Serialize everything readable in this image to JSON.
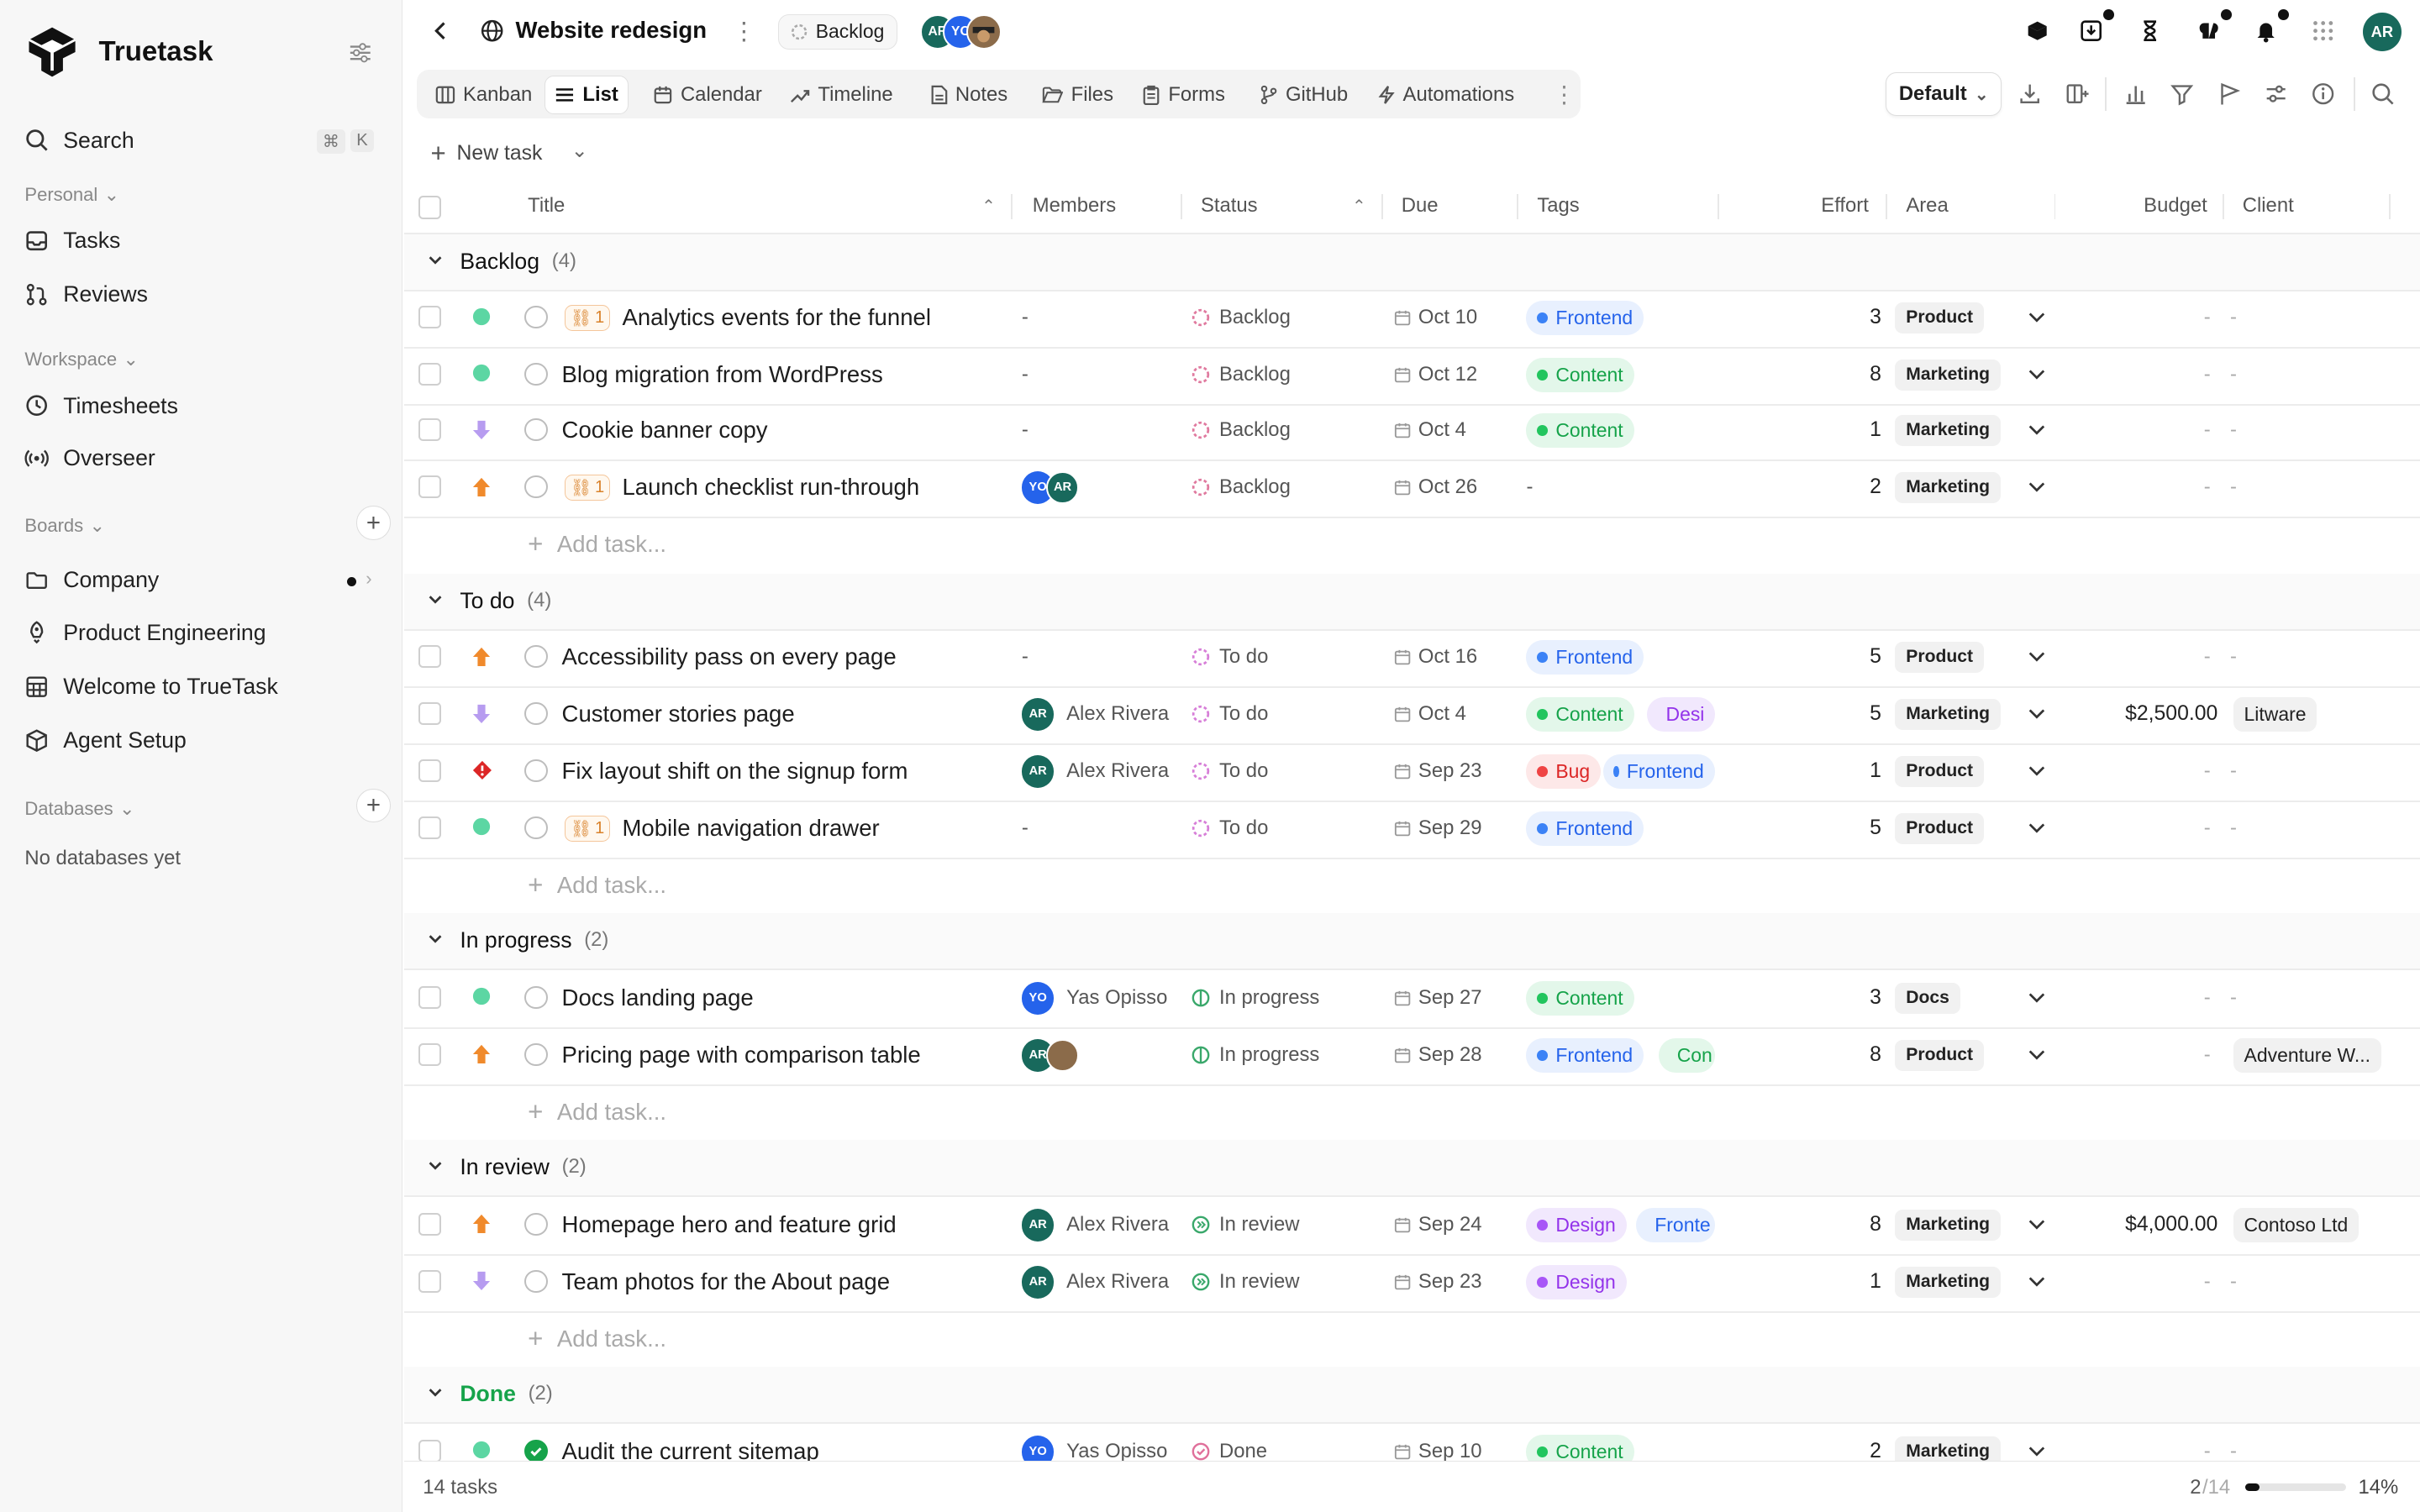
{
  "sidebar": {
    "brand": "Truetask",
    "search": "Search",
    "search_kbd_cmd": "⌘",
    "search_kbd_key": "K",
    "personal_label": "Personal",
    "tasks": "Tasks",
    "reviews": "Reviews",
    "workspace_label": "Workspace",
    "timesheets": "Timesheets",
    "overseer": "Overseer",
    "boards_label": "Boards",
    "boards": [
      "Company",
      "Product Engineering",
      "Welcome to TrueTask",
      "Agent Setup"
    ],
    "databases_label": "Databases",
    "no_databases": "No databases yet"
  },
  "header": {
    "title": "Website redesign",
    "status": "Backlog",
    "avatars": [
      "AR",
      "YO"
    ],
    "user": "AR"
  },
  "tabs": [
    "Kanban",
    "List",
    "Calendar",
    "Timeline",
    "Notes",
    "Files",
    "Forms",
    "GitHub",
    "Automations"
  ],
  "active_tab": "List",
  "view": "Default",
  "new_task": "New task",
  "columns": {
    "title": "Title",
    "members": "Members",
    "status": "Status",
    "due": "Due",
    "tags": "Tags",
    "effort": "Effort",
    "area": "Area",
    "budget": "Budget",
    "client": "Client"
  },
  "add_task": "Add task...",
  "groups": [
    {
      "name": "Backlog",
      "count": "(4)",
      "color": "#111"
    },
    {
      "name": "To do",
      "count": "(4)",
      "color": "#111"
    },
    {
      "name": "In progress",
      "count": "(2)",
      "color": "#111"
    },
    {
      "name": "In review",
      "count": "(2)",
      "color": "#111"
    },
    {
      "name": "Done",
      "count": "(2)",
      "color": "#16a34a"
    }
  ],
  "tasks": [
    {
      "priority": "green",
      "link": "1",
      "title": "Analytics events for the funnel",
      "members": "-",
      "status": "Backlog",
      "due": "Oct 10",
      "tags": [
        [
          "Frontend",
          "blue"
        ]
      ],
      "effort": "3",
      "area": "Product",
      "budget": "-",
      "client": "-"
    },
    {
      "priority": "green",
      "link": "",
      "title": "Blog migration from WordPress",
      "members": "-",
      "status": "Backlog",
      "due": "Oct 12",
      "tags": [
        [
          "Content",
          "green"
        ]
      ],
      "effort": "8",
      "area": "Marketing",
      "budget": "-",
      "client": "-"
    },
    {
      "priority": "low",
      "link": "",
      "title": "Cookie banner copy",
      "members": "-",
      "status": "Backlog",
      "due": "Oct 4",
      "tags": [
        [
          "Content",
          "green"
        ]
      ],
      "effort": "1",
      "area": "Marketing",
      "budget": "-",
      "client": "-"
    },
    {
      "priority": "high",
      "link": "1",
      "title": "Launch checklist run-through",
      "members": "YO AR",
      "status": "Backlog",
      "due": "Oct 26",
      "tags": [],
      "tags_empty": "-",
      "effort": "2",
      "area": "Marketing",
      "budget": "-",
      "client": "-"
    },
    {
      "priority": "high",
      "link": "",
      "title": "Accessibility pass on every page",
      "members": "-",
      "status": "To do",
      "due": "Oct 16",
      "tags": [
        [
          "Frontend",
          "blue"
        ]
      ],
      "effort": "5",
      "area": "Product",
      "budget": "-",
      "client": "-"
    },
    {
      "priority": "low",
      "link": "",
      "title": "Customer stories page",
      "members": "Alex Rivera",
      "status": "To do",
      "due": "Oct 4",
      "tags": [
        [
          "Content",
          "green"
        ],
        [
          "Desi",
          "purple"
        ]
      ],
      "effort": "5",
      "area": "Marketing",
      "budget": "$2,500.00",
      "client": "Litware"
    },
    {
      "priority": "urgent",
      "link": "",
      "title": "Fix layout shift on the signup form",
      "members": "Alex Rivera",
      "status": "To do",
      "due": "Sep 23",
      "tags": [
        [
          "Bug",
          "red"
        ],
        [
          "Frontend",
          "blue"
        ]
      ],
      "effort": "1",
      "area": "Product",
      "budget": "-",
      "client": "-"
    },
    {
      "priority": "green",
      "link": "1",
      "title": "Mobile navigation drawer",
      "members": "-",
      "status": "To do",
      "due": "Sep 29",
      "tags": [
        [
          "Frontend",
          "blue"
        ]
      ],
      "effort": "5",
      "area": "Product",
      "budget": "-",
      "client": "-"
    },
    {
      "priority": "green",
      "link": "",
      "title": "Docs landing page",
      "members": "Yas Opisso",
      "status": "In progress",
      "due": "Sep 27",
      "tags": [
        [
          "Content",
          "green"
        ]
      ],
      "effort": "3",
      "area": "Docs",
      "budget": "-",
      "client": "-"
    },
    {
      "priority": "high",
      "link": "",
      "title": "Pricing page with comparison table",
      "members": "AR +1",
      "status": "In progress",
      "due": "Sep 28",
      "tags": [
        [
          "Frontend",
          "blue"
        ],
        [
          "Con",
          "green"
        ]
      ],
      "effort": "8",
      "area": "Product",
      "budget": "-",
      "client": "Adventure W..."
    },
    {
      "priority": "high",
      "link": "",
      "title": "Homepage hero and feature grid",
      "members": "Alex Rivera",
      "status": "In review",
      "due": "Sep 24",
      "tags": [
        [
          "Design",
          "purple"
        ],
        [
          "Fronte",
          "blue"
        ]
      ],
      "effort": "8",
      "area": "Marketing",
      "budget": "$4,000.00",
      "client": "Contoso Ltd"
    },
    {
      "priority": "low",
      "link": "",
      "title": "Team photos for the About page",
      "members": "Alex Rivera",
      "status": "In review",
      "due": "Sep 23",
      "tags": [
        [
          "Design",
          "purple"
        ]
      ],
      "effort": "1",
      "area": "Marketing",
      "budget": "-",
      "client": "-"
    },
    {
      "priority": "green",
      "link": "",
      "title": "Audit the current sitemap",
      "members": "Yas Opisso",
      "status": "Done",
      "due": "Sep 10",
      "tags": [
        [
          "Content",
          "green"
        ]
      ],
      "effort": "2",
      "area": "Marketing",
      "budget": "-",
      "client": "-"
    }
  ],
  "footer": {
    "count": "14 tasks",
    "done_num": "2",
    "done_den": "/14",
    "progress": 0.14,
    "percent": "14%"
  },
  "colors": {
    "blue": "#3b82f6",
    "green": "#22c55e",
    "purple": "#a855f7",
    "red": "#ef4444",
    "accent": "#111111"
  }
}
